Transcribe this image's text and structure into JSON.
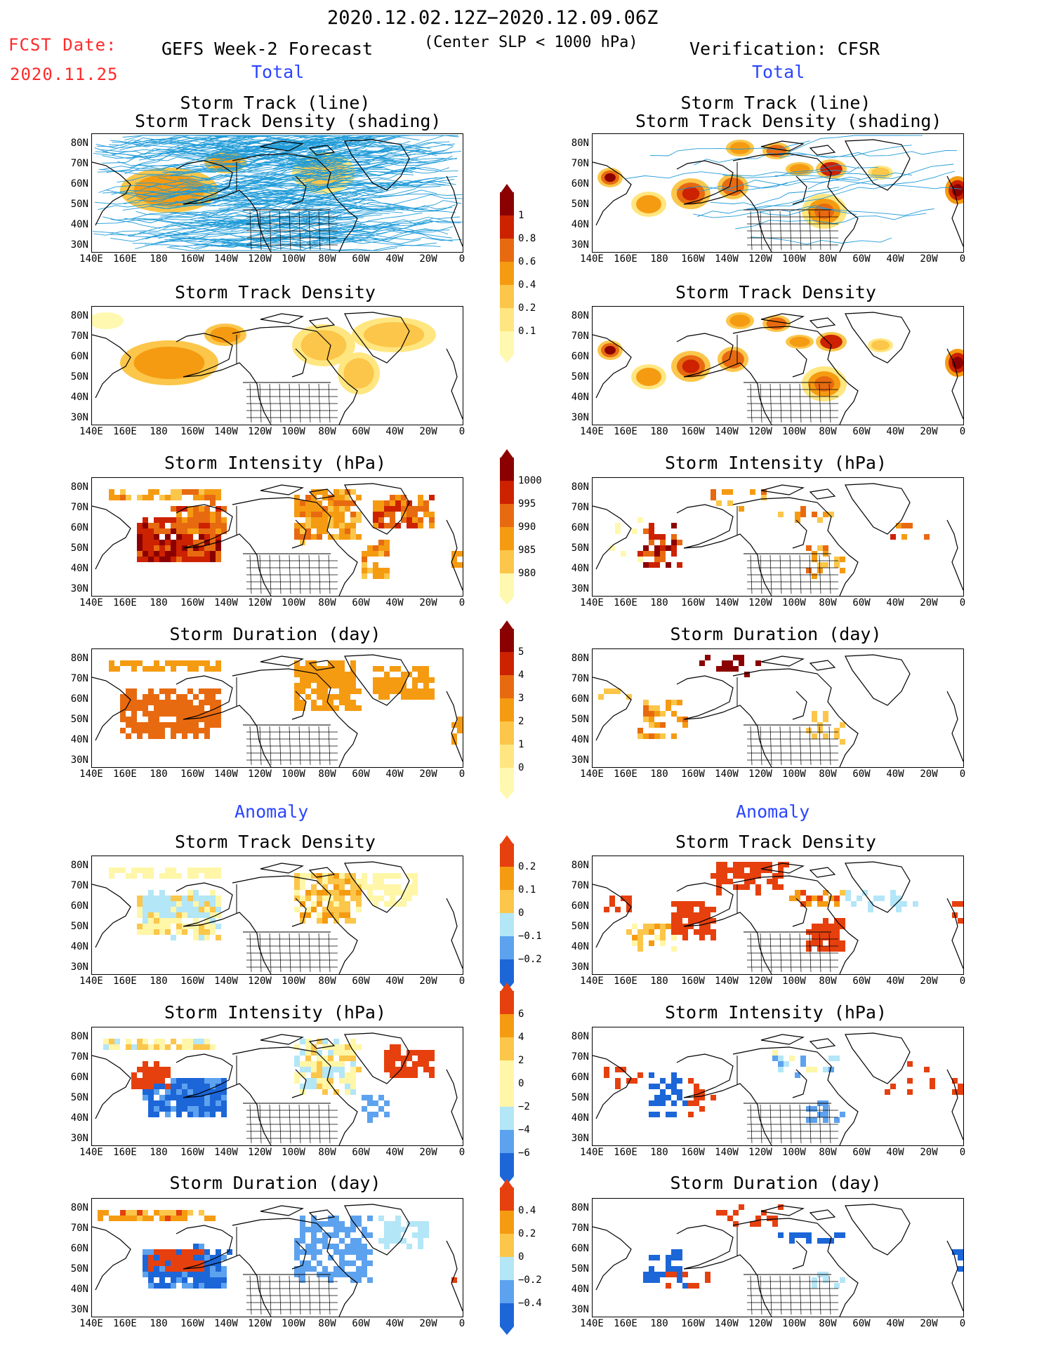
{
  "header": {
    "period": "2020.12.02.12Z−2020.12.09.06Z",
    "fcst_label": "FCST Date:",
    "fcst_date": "2020.11.25",
    "left_title": "GEFS Week-2 Forecast",
    "center_note": "(Center SLP < 1000 hPa)",
    "right_title": "Verification: CFSR",
    "total_label": "Total",
    "anomaly_label": "Anomaly"
  },
  "panel_titles": {
    "track_line": "Storm Track (line)",
    "track_shading": "Storm Track Density (shading)",
    "density": "Storm Track Density",
    "intensity": "Storm Intensity (hPa)",
    "duration": "Storm Duration (day)"
  },
  "axes": {
    "lat_labels": [
      "80N",
      "70N",
      "60N",
      "50N",
      "40N",
      "30N"
    ],
    "lon_labels": [
      "140E",
      "160E",
      "180",
      "160W",
      "140W",
      "120W",
      "100W",
      "80W",
      "60W",
      "40W",
      "20W",
      "0"
    ]
  },
  "colorbars": {
    "density_total": [
      "1",
      "0.8",
      "0.6",
      "0.4",
      "0.2",
      "0.1"
    ],
    "intensity_total": [
      "1000",
      "995",
      "990",
      "985",
      "980"
    ],
    "duration_total": [
      "5",
      "4",
      "3",
      "2",
      "1",
      "0"
    ],
    "density_anom": [
      "0.2",
      "0.1",
      "0",
      "−0.1",
      "−0.2"
    ],
    "intensity_anom": [
      "6",
      "4",
      "2",
      "0",
      "−2",
      "−4",
      "−6"
    ],
    "duration_anom": [
      "0.4",
      "0.2",
      "0",
      "−0.2",
      "−0.4"
    ]
  },
  "colors": {
    "track_line": "#1f9bd8",
    "warm_scale": [
      "#fff8b0",
      "#ffe680",
      "#fbc64a",
      "#f59b12",
      "#e86a10",
      "#cc2200",
      "#8b0000"
    ],
    "anom_scale": [
      "#1c66d8",
      "#5da2ee",
      "#b3e6f7",
      "#fff6a8",
      "#fbc64a",
      "#f59b12",
      "#e6400e"
    ]
  }
}
